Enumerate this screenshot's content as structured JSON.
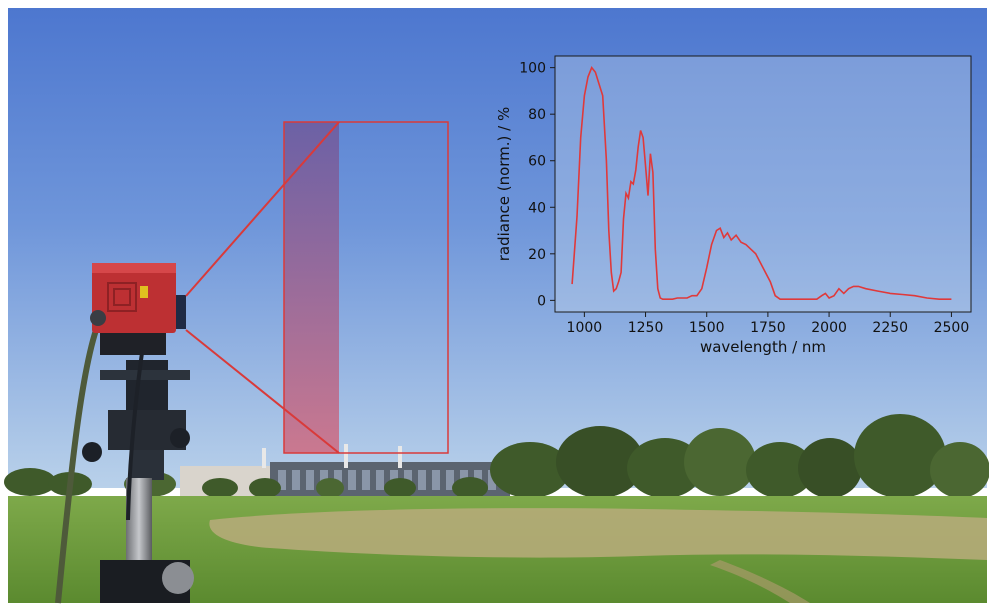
{
  "scene": {
    "description_icon": "field-spectrometer-photo",
    "colors": {
      "sky_top": "#4f79cf",
      "sky_bottom": "#b8d0ea",
      "grass": "#6f9e3d",
      "dry_grass": "#b8ab7a",
      "camera_body": "#b92f31",
      "highlight": "#d93a3a"
    }
  },
  "chart_data": {
    "type": "line",
    "title": "",
    "xlabel": "wavelength / nm",
    "ylabel": "radiance (norm.) / %",
    "xlim": [
      880,
      2580
    ],
    "ylim": [
      -5,
      105
    ],
    "x_ticks": [
      1000,
      1250,
      1500,
      1750,
      2000,
      2250,
      2500
    ],
    "y_ticks": [
      0,
      20,
      40,
      60,
      80,
      100
    ],
    "grid": false,
    "legend": "none",
    "series": [
      {
        "color": "#e0393a",
        "x": [
          950,
          970,
          985,
          1000,
          1015,
          1030,
          1045,
          1060,
          1075,
          1090,
          1100,
          1110,
          1120,
          1130,
          1140,
          1150,
          1160,
          1170,
          1180,
          1190,
          1200,
          1210,
          1220,
          1230,
          1240,
          1250,
          1260,
          1270,
          1280,
          1290,
          1300,
          1310,
          1320,
          1340,
          1360,
          1380,
          1400,
          1420,
          1440,
          1460,
          1480,
          1500,
          1520,
          1540,
          1555,
          1570,
          1585,
          1600,
          1620,
          1640,
          1660,
          1680,
          1700,
          1720,
          1740,
          1760,
          1780,
          1800,
          1850,
          1900,
          1950,
          1970,
          1985,
          2000,
          2020,
          2040,
          2060,
          2080,
          2100,
          2120,
          2150,
          2200,
          2250,
          2300,
          2350,
          2400,
          2450,
          2500
        ],
        "y": [
          7,
          36,
          70,
          88,
          96,
          100,
          98,
          93,
          88,
          60,
          30,
          12,
          4,
          5,
          8,
          12,
          35,
          46,
          44,
          51,
          50,
          56,
          66,
          73,
          70,
          58,
          45,
          63,
          55,
          22,
          5,
          1,
          0.5,
          0.5,
          0.5,
          1,
          1,
          1,
          2,
          2,
          5,
          14,
          24,
          30,
          31,
          27,
          29,
          26,
          28,
          25,
          24,
          22,
          20,
          16,
          12,
          8,
          2,
          0.5,
          0.5,
          0.5,
          0.5,
          2,
          3,
          1,
          2,
          5,
          3,
          5,
          6,
          6,
          5,
          4,
          3,
          2.5,
          2,
          1,
          0.5,
          0.5
        ]
      }
    ]
  }
}
